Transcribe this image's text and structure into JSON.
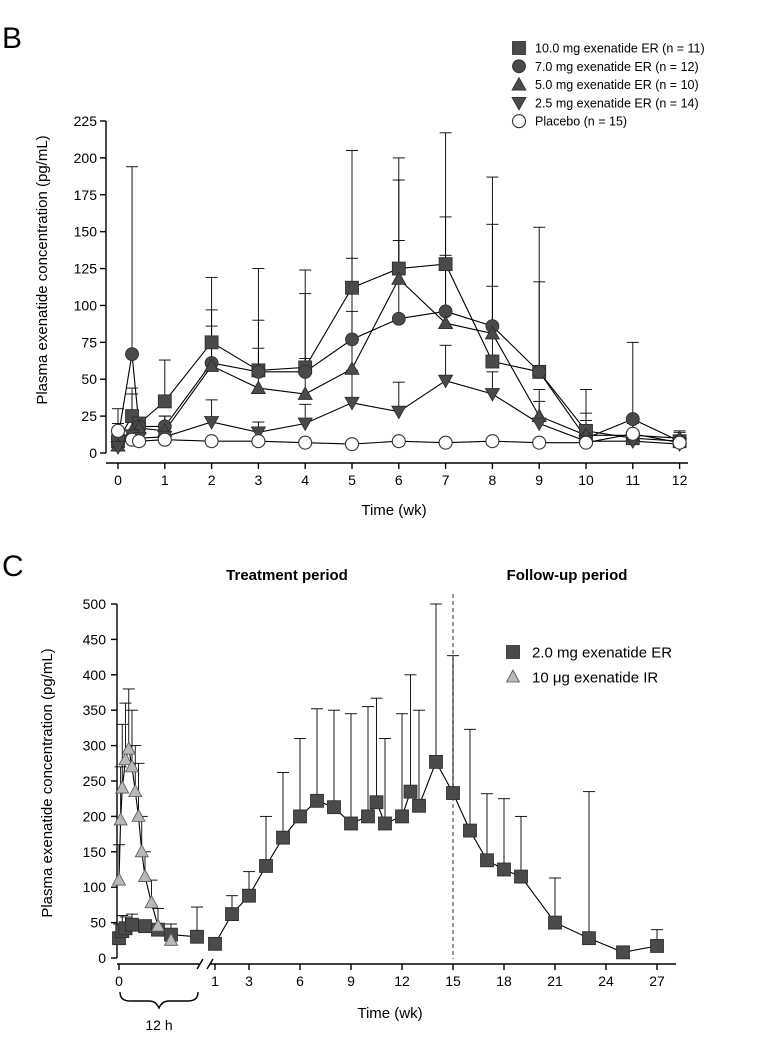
{
  "panel_b": {
    "letter": "B",
    "xlabel": "Time (wk)",
    "ylabel": "Plasma exenatide concentration (pg/mL)",
    "yticks": [
      "0",
      "25",
      "50",
      "75",
      "100",
      "125",
      "150",
      "175",
      "200",
      "225"
    ],
    "xticks": [
      "0",
      "1",
      "2",
      "3",
      "4",
      "5",
      "6",
      "7",
      "8",
      "9",
      "10",
      "11",
      "12"
    ]
  },
  "panel_c": {
    "letter": "C",
    "xlabel": "Time (wk)",
    "ylabel": "Plasma exenatide concentration (pg/mL)",
    "yticks": [
      "0",
      "50",
      "100",
      "150",
      "200",
      "250",
      "300",
      "350",
      "400",
      "450",
      "500"
    ],
    "xticks_hours": [
      "0"
    ],
    "xticks_weeks": [
      "1",
      "3",
      "6",
      "9",
      "12",
      "15",
      "18",
      "21",
      "24",
      "27"
    ],
    "bracket_label": "12 h",
    "treatment_label": "Treatment period",
    "followup_label": "Follow-up period"
  },
  "chart_data": [
    {
      "type": "line",
      "xlabel": "Time (wk)",
      "ylabel": "Plasma exenatide concentration (pg/mL)",
      "ylim": [
        0,
        225
      ],
      "xlim": [
        -0.2,
        12.2
      ],
      "grid": false,
      "legend_position": "top-right",
      "series": [
        {
          "name": "10.0 mg exenatide ER (n = 11)",
          "marker": "square-filled",
          "points": [
            {
              "x": 0,
              "y": 8,
              "err": 20
            },
            {
              "x": 0.3,
              "y": 25,
              "err": 44
            },
            {
              "x": 0.45,
              "y": 20
            },
            {
              "x": 1,
              "y": 35,
              "err": 63
            },
            {
              "x": 2,
              "y": 75,
              "err": 119
            },
            {
              "x": 3,
              "y": 56,
              "err": 125
            },
            {
              "x": 4,
              "y": 58,
              "err": 124
            },
            {
              "x": 5,
              "y": 112,
              "err": 205
            },
            {
              "x": 6,
              "y": 125,
              "err": 200
            },
            {
              "x": 7,
              "y": 128,
              "err": 217
            },
            {
              "x": 8,
              "y": 62,
              "err": 187
            },
            {
              "x": 9,
              "y": 55,
              "err": 153
            },
            {
              "x": 10,
              "y": 15,
              "err": 43
            },
            {
              "x": 11,
              "y": 10,
              "err": 25
            },
            {
              "x": 12,
              "y": 8,
              "err": 14
            }
          ]
        },
        {
          "name": "7.0 mg exenatide ER (n = 12)",
          "marker": "circle-filled",
          "points": [
            {
              "x": 0,
              "y": 10,
              "err": 30
            },
            {
              "x": 0.3,
              "y": 67,
              "err": 194
            },
            {
              "x": 0.45,
              "y": 18
            },
            {
              "x": 1,
              "y": 18,
              "err": 25
            },
            {
              "x": 2,
              "y": 61,
              "err": 97
            },
            {
              "x": 3,
              "y": 55,
              "err": 90
            },
            {
              "x": 4,
              "y": 55,
              "err": 108
            },
            {
              "x": 5,
              "y": 77,
              "err": 132
            },
            {
              "x": 6,
              "y": 91,
              "err": 185
            },
            {
              "x": 7,
              "y": 96,
              "err": 160
            },
            {
              "x": 8,
              "y": 86,
              "err": 155
            },
            {
              "x": 9,
              "y": 55,
              "err": 116
            },
            {
              "x": 10,
              "y": 10,
              "err": 22
            },
            {
              "x": 11,
              "y": 23,
              "err": 75
            },
            {
              "x": 12,
              "y": 8,
              "err": 12
            }
          ]
        },
        {
          "name": "5.0 mg exenatide ER (n = 10)",
          "marker": "triangle-up-filled",
          "points": [
            {
              "x": 0,
              "y": 5,
              "err": 15
            },
            {
              "x": 0.3,
              "y": 15,
              "err": 40
            },
            {
              "x": 0.45,
              "y": 17
            },
            {
              "x": 1,
              "y": 15,
              "err": 25
            },
            {
              "x": 2,
              "y": 59,
              "err": 86
            },
            {
              "x": 3,
              "y": 44,
              "err": 71
            },
            {
              "x": 4,
              "y": 40,
              "err": 64
            },
            {
              "x": 5,
              "y": 57,
              "err": 96
            },
            {
              "x": 6,
              "y": 118,
              "err": 144
            },
            {
              "x": 7,
              "y": 88,
              "err": 134
            },
            {
              "x": 8,
              "y": 81,
              "err": 113
            },
            {
              "x": 9,
              "y": 25,
              "err": 43
            },
            {
              "x": 10,
              "y": 12,
              "err": 27
            },
            {
              "x": 11,
              "y": 12,
              "err": 20
            },
            {
              "x": 12,
              "y": 10,
              "err": 15
            }
          ]
        },
        {
          "name": "2.5 mg exenatide ER (n = 14)",
          "marker": "triangle-down-filled",
          "points": [
            {
              "x": 0,
              "y": 4,
              "err": 10
            },
            {
              "x": 0.3,
              "y": 12,
              "err": 23
            },
            {
              "x": 0.45,
              "y": 10
            },
            {
              "x": 1,
              "y": 11,
              "err": 18
            },
            {
              "x": 2,
              "y": 21,
              "err": 36
            },
            {
              "x": 3,
              "y": 14,
              "err": 21
            },
            {
              "x": 4,
              "y": 20,
              "err": 33
            },
            {
              "x": 5,
              "y": 34,
              "err": 56
            },
            {
              "x": 6,
              "y": 28,
              "err": 48
            },
            {
              "x": 7,
              "y": 49,
              "err": 73
            },
            {
              "x": 8,
              "y": 40,
              "err": 55
            },
            {
              "x": 9,
              "y": 20,
              "err": 35
            },
            {
              "x": 10,
              "y": 8,
              "err": 15
            },
            {
              "x": 11,
              "y": 8,
              "err": 12
            },
            {
              "x": 12,
              "y": 6,
              "err": 10
            }
          ]
        },
        {
          "name": "Placebo (n = 15)",
          "marker": "circle-open",
          "points": [
            {
              "x": 0,
              "y": 15
            },
            {
              "x": 0.3,
              "y": 9
            },
            {
              "x": 0.45,
              "y": 8
            },
            {
              "x": 1,
              "y": 9
            },
            {
              "x": 2,
              "y": 8
            },
            {
              "x": 3,
              "y": 8
            },
            {
              "x": 4,
              "y": 7
            },
            {
              "x": 5,
              "y": 6
            },
            {
              "x": 6,
              "y": 8
            },
            {
              "x": 7,
              "y": 7
            },
            {
              "x": 8,
              "y": 8
            },
            {
              "x": 9,
              "y": 7
            },
            {
              "x": 10,
              "y": 7
            },
            {
              "x": 11,
              "y": 13
            },
            {
              "x": 12,
              "y": 7
            }
          ]
        }
      ]
    },
    {
      "type": "line",
      "xlabel": "Time (wk)",
      "ylabel": "Plasma exenatide concentration (pg/mL)",
      "ylim": [
        0,
        500
      ],
      "grid": false,
      "legend_position": "top-right",
      "annotations": [
        "Treatment period",
        "Follow-up period",
        "12 h"
      ],
      "reference_line": {
        "x_week": 15,
        "style": "dashed"
      },
      "series": [
        {
          "name": "2.0 mg exenatide ER",
          "marker": "square-filled",
          "segment_hours": [
            {
              "x_h": 0,
              "y": 28,
              "err": 48
            },
            {
              "x_h": 0.5,
              "y": 38,
              "err": 60
            },
            {
              "x_h": 1,
              "y": 42,
              "err": 58
            },
            {
              "x_h": 2,
              "y": 47,
              "err": 62
            },
            {
              "x_h": 4,
              "y": 45
            },
            {
              "x_h": 6,
              "y": 40
            },
            {
              "x_h": 8,
              "y": 33,
              "err": 48
            },
            {
              "x_h": 12,
              "y": 30,
              "err": 72
            }
          ],
          "segment_weeks": [
            {
              "x": 1,
              "y": 20
            },
            {
              "x": 2,
              "y": 62,
              "err": 88
            },
            {
              "x": 3,
              "y": 88,
              "err": 122
            },
            {
              "x": 4,
              "y": 130,
              "err": 200
            },
            {
              "x": 5,
              "y": 170,
              "err": 262
            },
            {
              "x": 6,
              "y": 200,
              "err": 310
            },
            {
              "x": 7,
              "y": 222,
              "err": 352
            },
            {
              "x": 8,
              "y": 213,
              "err": 350
            },
            {
              "x": 9,
              "y": 190,
              "err": 345
            },
            {
              "x": 10,
              "y": 200,
              "err": 355
            },
            {
              "x": 10.5,
              "y": 220,
              "err": 367
            },
            {
              "x": 11,
              "y": 190,
              "err": 310
            },
            {
              "x": 12,
              "y": 200,
              "err": 345
            },
            {
              "x": 12.5,
              "y": 235,
              "err": 400
            },
            {
              "x": 13,
              "y": 215,
              "err": 350
            },
            {
              "x": 14,
              "y": 277,
              "err": 500
            },
            {
              "x": 15,
              "y": 233,
              "err": 427
            },
            {
              "x": 16,
              "y": 180,
              "err": 323
            },
            {
              "x": 17,
              "y": 138,
              "err": 232
            },
            {
              "x": 18,
              "y": 125,
              "err": 225
            },
            {
              "x": 19,
              "y": 115,
              "err": 200
            },
            {
              "x": 21,
              "y": 50,
              "err": 113
            },
            {
              "x": 23,
              "y": 28,
              "err": 235
            },
            {
              "x": 25,
              "y": 8
            },
            {
              "x": 27,
              "y": 17,
              "err": 40
            }
          ]
        },
        {
          "name": "10 μg exenatide IR",
          "marker": "triangle-up-gray",
          "segment_hours": [
            {
              "x_h": 0,
              "y": 110,
              "err": 160
            },
            {
              "x_h": 0.25,
              "y": 195,
              "err": 270
            },
            {
              "x_h": 0.5,
              "y": 240,
              "err": 330
            },
            {
              "x_h": 1,
              "y": 280,
              "err": 360
            },
            {
              "x_h": 1.5,
              "y": 295,
              "err": 380
            },
            {
              "x_h": 2,
              "y": 270,
              "err": 350
            },
            {
              "x_h": 2.5,
              "y": 235,
              "err": 300
            },
            {
              "x_h": 3,
              "y": 200,
              "err": 275
            },
            {
              "x_h": 3.5,
              "y": 150,
              "err": 200
            },
            {
              "x_h": 4,
              "y": 115,
              "err": 150
            },
            {
              "x_h": 5,
              "y": 78,
              "err": 110
            },
            {
              "x_h": 6,
              "y": 45,
              "err": 70
            },
            {
              "x_h": 8,
              "y": 25,
              "err": 40
            }
          ]
        }
      ]
    }
  ]
}
